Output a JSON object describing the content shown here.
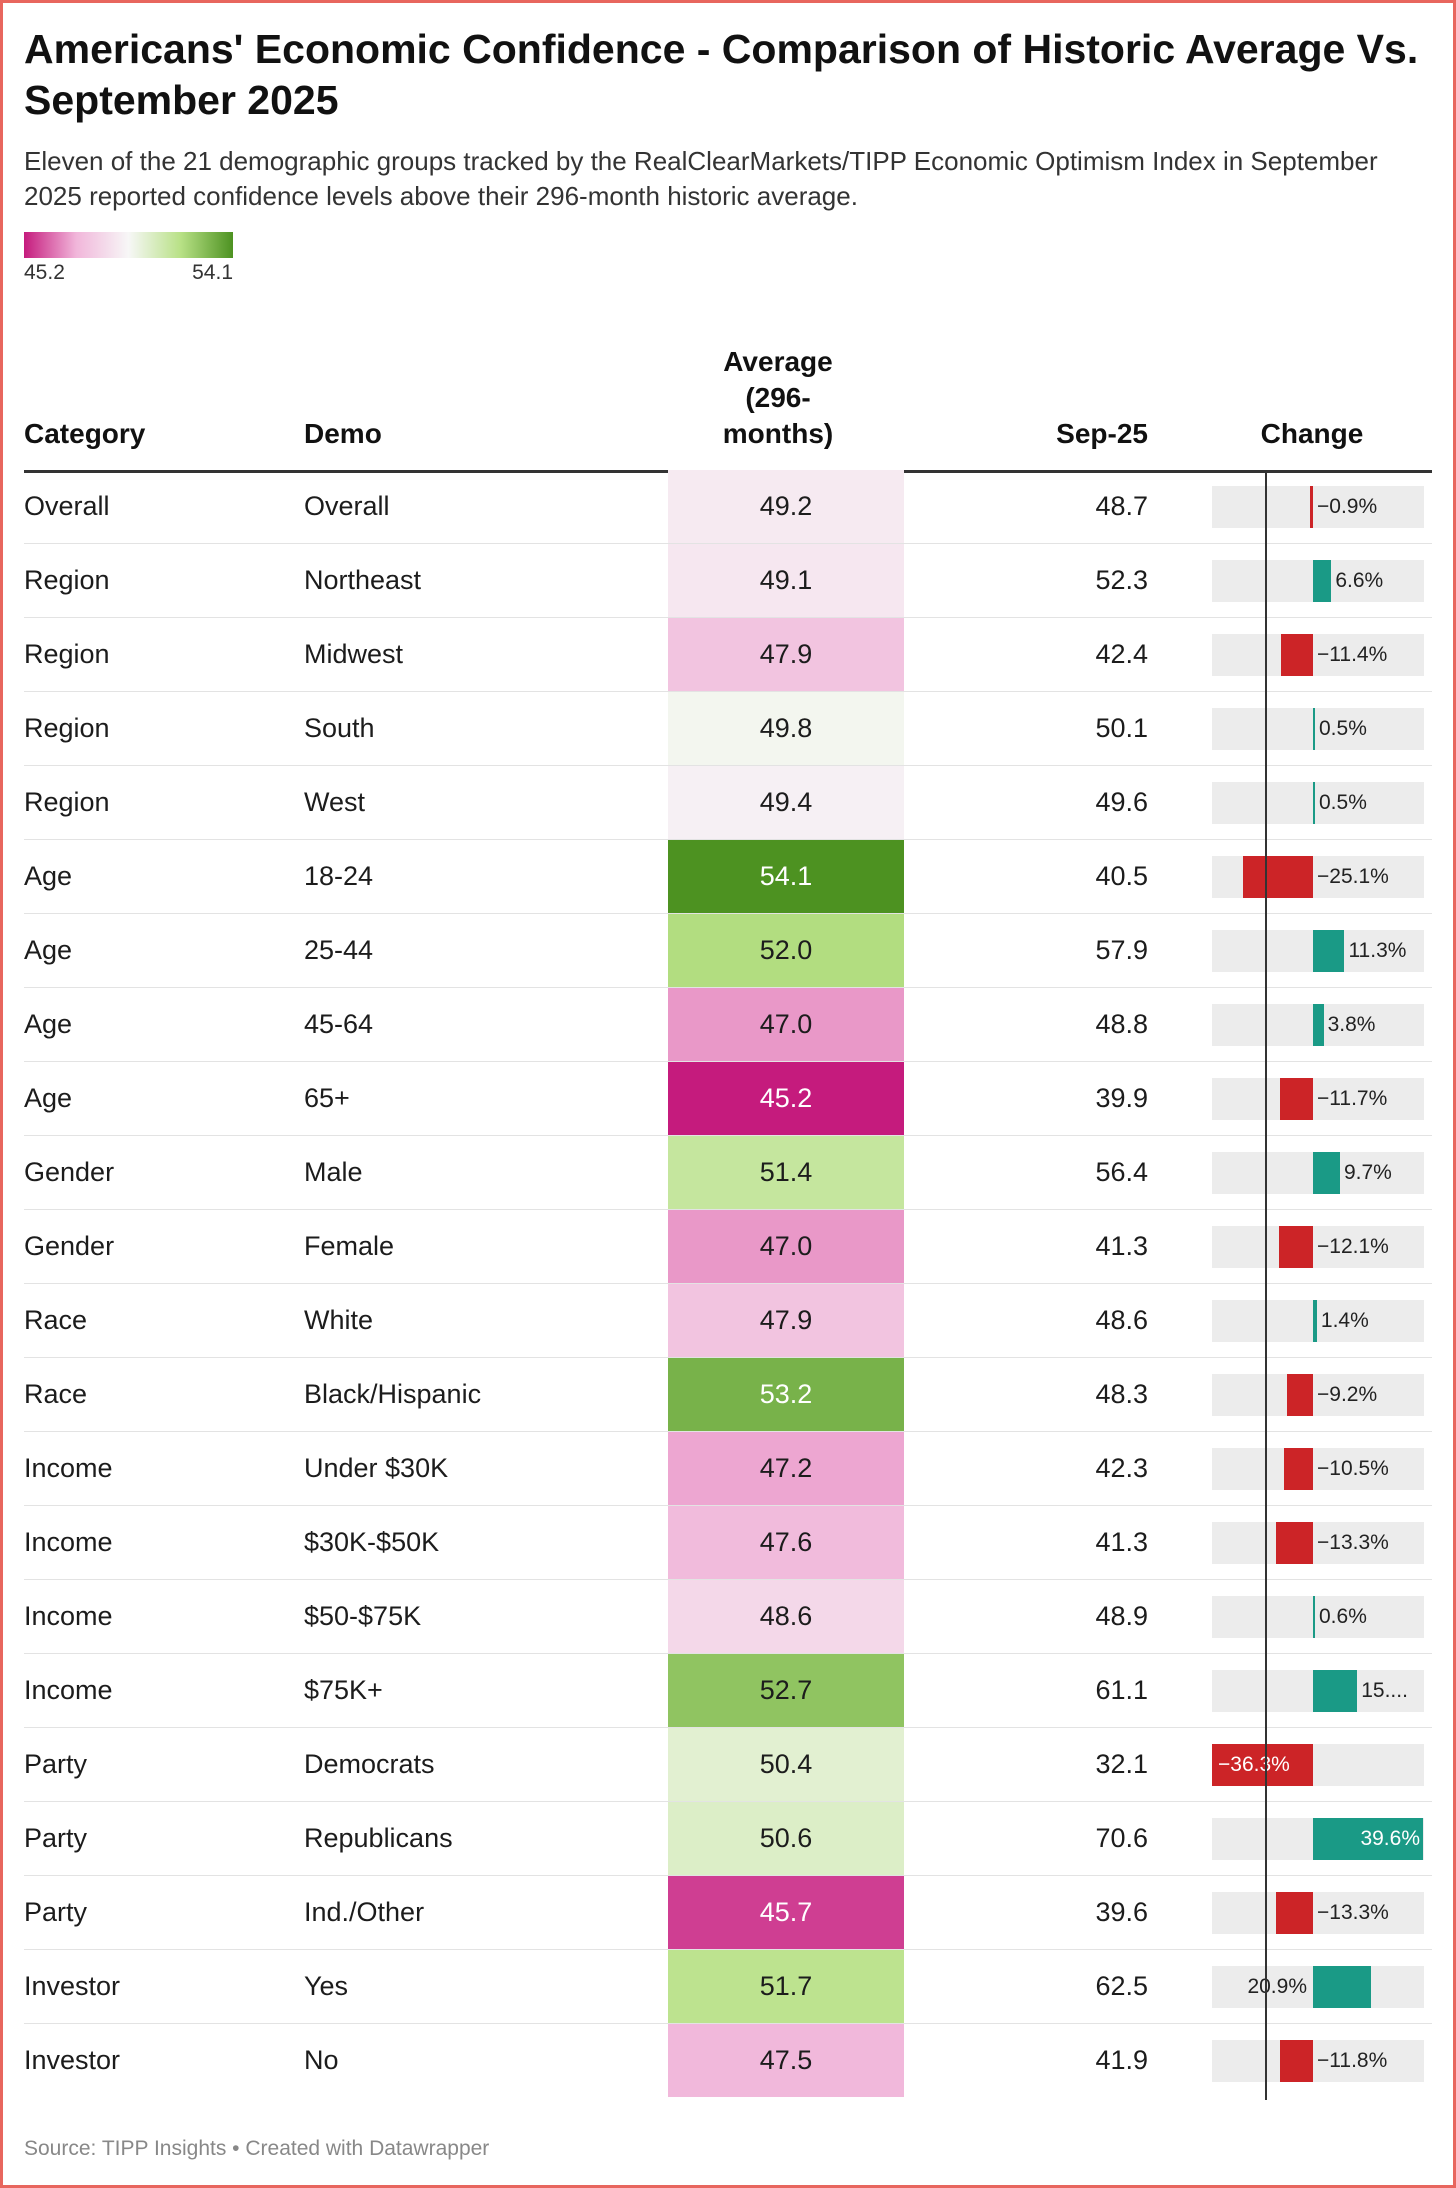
{
  "title": "Americans' Economic Confidence - Comparison of Historic Average Vs. September 2025",
  "subtitle": "Eleven of the 21 demographic groups tracked by the RealClearMarkets/TIPP Economic Optimism Index in September 2025 reported confidence levels above their 296-month historic average.",
  "legend": {
    "min_label": "45.2",
    "max_label": "54.1",
    "min": 45.2,
    "max": 54.1
  },
  "colors": {
    "positive": "#1a9a86",
    "negative": "#cc2427",
    "low": "#c51b7d",
    "mid": "#f7f7f7",
    "high": "#4d9221"
  },
  "source": "Source: TIPP Insights • Created with Datawrapper",
  "chart_data": {
    "type": "table",
    "columns": {
      "category": "Category",
      "demo": "Demo",
      "average": "Average (296-months)",
      "sep25": "Sep-25",
      "change": "Change"
    },
    "change_range": [
      -36.3,
      39.6
    ],
    "rows": [
      {
        "category": "Overall",
        "demo": "Overall",
        "average": "49.2",
        "sep25": "48.7",
        "change": -0.9,
        "change_label": "−0.9%"
      },
      {
        "category": "Region",
        "demo": "Northeast",
        "average": "49.1",
        "sep25": "52.3",
        "change": 6.6,
        "change_label": "6.6%"
      },
      {
        "category": "Region",
        "demo": "Midwest",
        "average": "47.9",
        "sep25": "42.4",
        "change": -11.4,
        "change_label": "−11.4%"
      },
      {
        "category": "Region",
        "demo": "South",
        "average": "49.8",
        "sep25": "50.1",
        "change": 0.5,
        "change_label": "0.5%"
      },
      {
        "category": "Region",
        "demo": "West",
        "average": "49.4",
        "sep25": "49.6",
        "change": 0.5,
        "change_label": "0.5%"
      },
      {
        "category": "Age",
        "demo": "18-24",
        "average": "54.1",
        "sep25": "40.5",
        "change": -25.1,
        "change_label": "−25.1%"
      },
      {
        "category": "Age",
        "demo": "25-44",
        "average": "52.0",
        "sep25": "57.9",
        "change": 11.3,
        "change_label": "11.3%"
      },
      {
        "category": "Age",
        "demo": "45-64",
        "average": "47.0",
        "sep25": "48.8",
        "change": 3.8,
        "change_label": "3.8%"
      },
      {
        "category": "Age",
        "demo": "65+",
        "average": "45.2",
        "sep25": "39.9",
        "change": -11.7,
        "change_label": "−11.7%"
      },
      {
        "category": "Gender",
        "demo": "Male",
        "average": "51.4",
        "sep25": "56.4",
        "change": 9.7,
        "change_label": "9.7%"
      },
      {
        "category": "Gender",
        "demo": "Female",
        "average": "47.0",
        "sep25": "41.3",
        "change": -12.1,
        "change_label": "−12.1%"
      },
      {
        "category": "Race",
        "demo": "White",
        "average": "47.9",
        "sep25": "48.6",
        "change": 1.4,
        "change_label": "1.4%"
      },
      {
        "category": "Race",
        "demo": "Black/Hispanic",
        "average": "53.2",
        "sep25": "48.3",
        "change": -9.2,
        "change_label": "−9.2%"
      },
      {
        "category": "Income",
        "demo": "Under $30K",
        "average": "47.2",
        "sep25": "42.3",
        "change": -10.5,
        "change_label": "−10.5%"
      },
      {
        "category": "Income",
        "demo": "$30K-$50K",
        "average": "47.6",
        "sep25": "41.3",
        "change": -13.3,
        "change_label": "−13.3%"
      },
      {
        "category": "Income",
        "demo": "$50-$75K",
        "average": "48.6",
        "sep25": "48.9",
        "change": 0.6,
        "change_label": "0.6%"
      },
      {
        "category": "Income",
        "demo": "$75K+",
        "average": "52.7",
        "sep25": "61.1",
        "change": 15.9,
        "change_label": "15...."
      },
      {
        "category": "Party",
        "demo": "Democrats",
        "average": "50.4",
        "sep25": "32.1",
        "change": -36.3,
        "change_label": "−36.3%"
      },
      {
        "category": "Party",
        "demo": "Republicans",
        "average": "50.6",
        "sep25": "70.6",
        "change": 39.6,
        "change_label": "39.6%"
      },
      {
        "category": "Party",
        "demo": "Ind./Other",
        "average": "45.7",
        "sep25": "39.6",
        "change": -13.3,
        "change_label": "−13.3%"
      },
      {
        "category": "Investor",
        "demo": "Yes",
        "average": "51.7",
        "sep25": "62.5",
        "change": 20.9,
        "change_label": "20.9%"
      },
      {
        "category": "Investor",
        "demo": "No",
        "average": "47.5",
        "sep25": "41.9",
        "change": -11.8,
        "change_label": "−11.8%"
      }
    ]
  }
}
